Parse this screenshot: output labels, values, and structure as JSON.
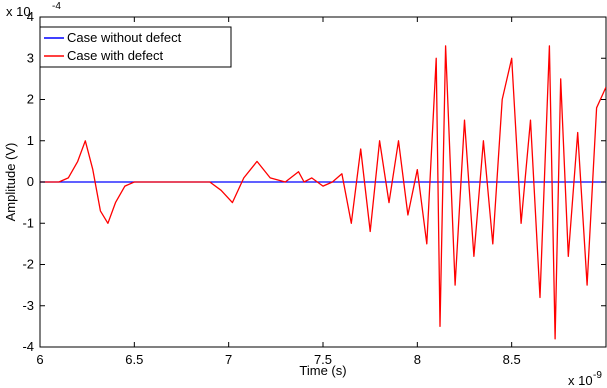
{
  "chart_data": {
    "type": "line",
    "title": "",
    "xlabel": "Time (s)",
    "ylabel": "Amplitude (V)",
    "xlim": [
      6e-09,
      9e-09
    ],
    "ylim": [
      -0.0004,
      0.0004
    ],
    "x_multiplier_label": "x 10",
    "x_multiplier_exp": "-9",
    "y_multiplier_label": "x 10",
    "y_multiplier_exp": "-4",
    "xticks": [
      6,
      6.5,
      7,
      7.5,
      8,
      8.5
    ],
    "xtick_labels": [
      "6",
      "6.5",
      "7",
      "7.5",
      "8",
      "8.5"
    ],
    "yticks": [
      -4,
      -3,
      -2,
      -1,
      0,
      1,
      2,
      3,
      4
    ],
    "ytick_labels": [
      "-4",
      "-3",
      "-2",
      "-1",
      "0",
      "1",
      "2",
      "3",
      "4"
    ],
    "grid": false,
    "legend_position": "top-left",
    "series": [
      {
        "name": "Case without defect",
        "color": "#0000ff",
        "x": [
          6e-09,
          9e-09
        ],
        "y": [
          0,
          0
        ]
      },
      {
        "name": "Case with defect",
        "color": "#ff0000",
        "x": [
          6e-09,
          6.1e-09,
          6.15e-09,
          6.2e-09,
          6.24e-09,
          6.28e-09,
          6.32e-09,
          6.36e-09,
          6.4e-09,
          6.45e-09,
          6.5e-09,
          6.9e-09,
          6.96e-09,
          7.02e-09,
          7.08e-09,
          7.15e-09,
          7.22e-09,
          7.3e-09,
          7.37e-09,
          7.4e-09,
          7.44e-09,
          7.5e-09,
          7.55e-09,
          7.6e-09,
          7.65e-09,
          7.7e-09,
          7.75e-09,
          7.8e-09,
          7.85e-09,
          7.9e-09,
          7.95e-09,
          8e-09,
          8.05e-09,
          8.1e-09,
          8.12e-09,
          8.15e-09,
          8.2e-09,
          8.25e-09,
          8.3e-09,
          8.35e-09,
          8.4e-09,
          8.45e-09,
          8.5e-09,
          8.55e-09,
          8.6e-09,
          8.65e-09,
          8.7e-09,
          8.73e-09,
          8.76e-09,
          8.8e-09,
          8.85e-09,
          8.9e-09,
          8.95e-09,
          9e-09
        ],
        "y": [
          0,
          0,
          1e-05,
          5e-05,
          0.0001,
          3e-05,
          -7e-05,
          -0.0001,
          -5e-05,
          -1e-05,
          0,
          0,
          -2e-05,
          -5e-05,
          1e-05,
          5e-05,
          1e-05,
          0,
          2.5e-05,
          0,
          1e-05,
          -1e-05,
          0,
          2e-05,
          -0.0001,
          8e-05,
          -0.00012,
          0.0001,
          -5e-05,
          0.0001,
          -8e-05,
          3e-05,
          -0.00015,
          0.0003,
          -0.00035,
          0.00033,
          -0.00025,
          0.00015,
          -0.00018,
          0.0001,
          -0.00015,
          0.0002,
          0.0003,
          -0.0001,
          0.00015,
          -0.00028,
          0.00033,
          -0.00038,
          0.00025,
          -0.00018,
          0.00012,
          -0.00025,
          0.00018,
          0.00023
        ]
      }
    ]
  }
}
